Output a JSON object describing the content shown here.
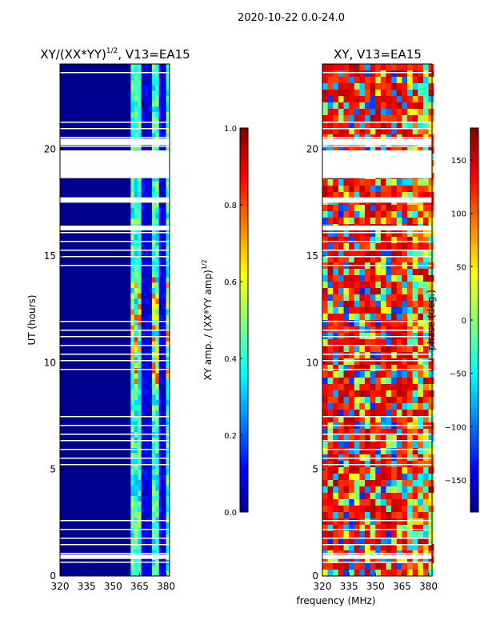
{
  "figure": {
    "suptitle": "2020-10-22 0.0-24.0",
    "shared_xlabel": "frequency (MHz)",
    "colors": {
      "blank": "#ffffff",
      "frame": "#000000"
    }
  },
  "chart_data": [
    {
      "type": "heatmap",
      "title_main": "XY/(XX*YY)",
      "title_sup": "1/2",
      "title_tail": ", V13=EA15",
      "ylabel": "UT (hours)",
      "xlim": [
        320,
        382
      ],
      "ylim": [
        0,
        24
      ],
      "xticks": [
        320,
        335,
        350,
        365,
        380
      ],
      "yticks": [
        0,
        5,
        10,
        15,
        20
      ],
      "blank_hour_ranges": [
        [
          18.65,
          19.95
        ],
        [
          17.5,
          17.75
        ],
        [
          16.2,
          16.4
        ],
        [
          0.8,
          1.0
        ],
        [
          20.2,
          20.5
        ]
      ],
      "colorbar": {
        "label_main": "XY amp. / (XX*YY amp)",
        "label_sup": "1/2",
        "range": [
          0.0,
          1.0
        ],
        "ticks": [
          "0.0",
          "0.2",
          "0.4",
          "0.6",
          "0.8",
          "1.0"
        ],
        "colormap": "jet"
      }
    },
    {
      "type": "heatmap",
      "title": "XY, V13=EA15",
      "xlim": [
        320,
        382
      ],
      "ylim": [
        0,
        24
      ],
      "xticks": [
        320,
        335,
        350,
        365,
        380
      ],
      "yticks": [
        0,
        5,
        10,
        15,
        20
      ],
      "blank_hour_ranges": [
        [
          18.65,
          19.95
        ],
        [
          17.5,
          17.75
        ],
        [
          16.2,
          16.4
        ],
        [
          0.8,
          1.0
        ],
        [
          20.2,
          20.5
        ]
      ],
      "colorbar": {
        "label": "phase (deg.)",
        "range": [
          -180,
          180
        ],
        "ticks": [
          "−150",
          "−100",
          "−50",
          "0",
          "50",
          "100",
          "150"
        ],
        "tick_values": [
          -150,
          -100,
          -50,
          0,
          50,
          100,
          150
        ],
        "colormap": "jet"
      }
    }
  ]
}
